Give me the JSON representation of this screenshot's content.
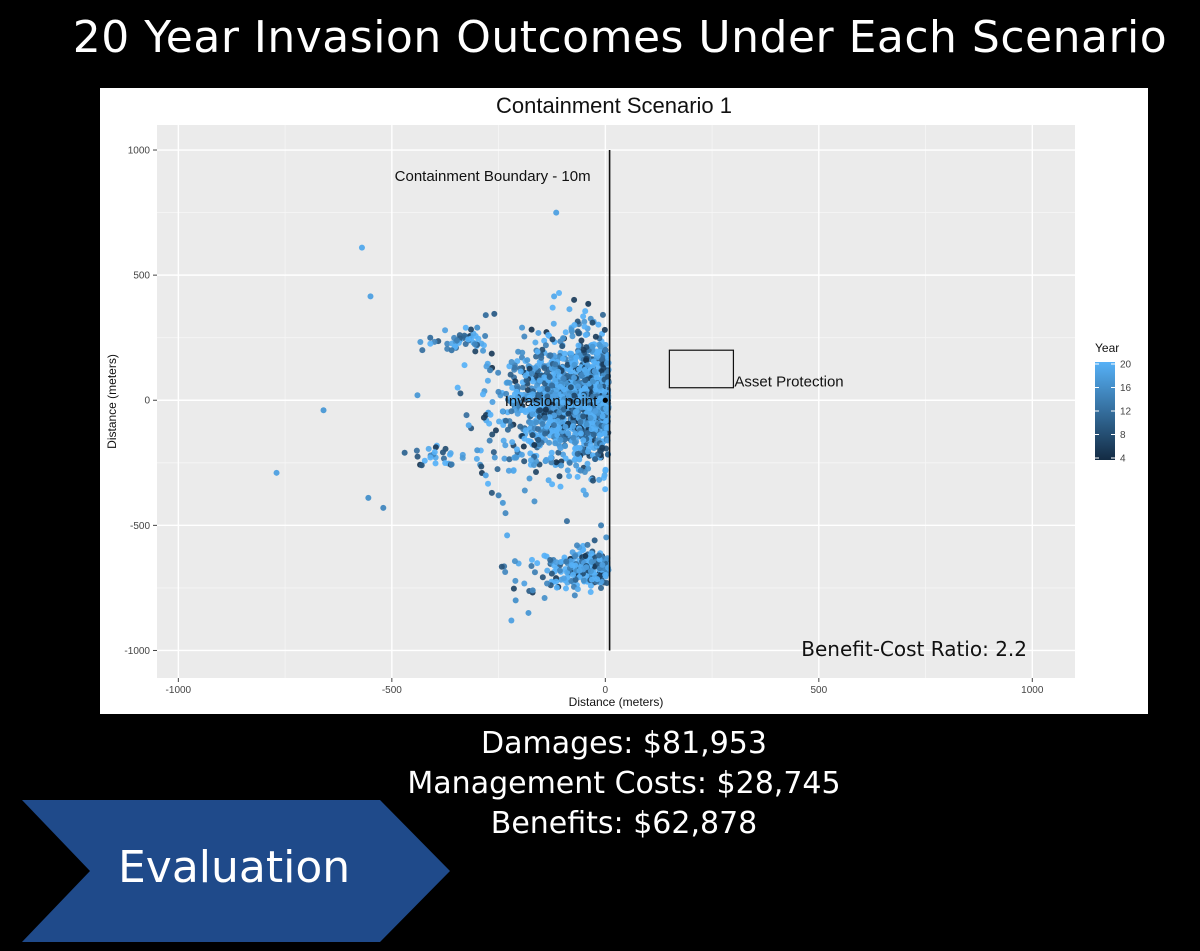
{
  "slide": {
    "title": "20 Year Invasion Outcomes Under Each Scenario",
    "stats": {
      "damages": "Damages: $81,953",
      "management_costs": "Management Costs: $28,745",
      "benefits": "Benefits: $62,878"
    },
    "banner": {
      "label": "Evaluation",
      "color": "#1f4a8a"
    }
  },
  "chart_data": {
    "type": "scatter",
    "title": "Containment Scenario 1",
    "xlabel": "Distance (meters)",
    "ylabel": "Distance (meters)",
    "xlim": [
      -1050,
      1100
    ],
    "ylim": [
      -1110,
      1100
    ],
    "x_ticks": [
      -1000,
      -500,
      0,
      500,
      1000
    ],
    "x_tick_labels": [
      "-1000",
      "-500",
      "0",
      "500",
      "1000"
    ],
    "y_ticks": [
      -1000,
      -500,
      0,
      500,
      1000
    ],
    "y_tick_labels": [
      "-1000",
      "-500",
      "0",
      "500",
      "1000"
    ],
    "grid": true,
    "panel_background": "#ebebeb",
    "legend": {
      "title": "Year",
      "position": "right",
      "ticks": [
        "20",
        "16",
        "12",
        "8",
        "4"
      ],
      "color_low": "#132b43",
      "color_high": "#56b1f7"
    },
    "containment_boundary": {
      "x": 10,
      "y_range": [
        -1000,
        1000
      ],
      "label": "Containment Boundary - 10m"
    },
    "asset_protection": {
      "x_range": [
        150,
        300
      ],
      "y_range": [
        50,
        200
      ],
      "label": "Asset Protection"
    },
    "invasion_point": {
      "x": 0,
      "y": 0,
      "label": "Invasion point"
    },
    "benefit_cost_ratio": "Benefit-Cost Ratio: 2.2",
    "series": [
      {
        "description_clusters": [
          {
            "cx": -95,
            "cy": 10,
            "sx": 65,
            "sy": 110,
            "n": 900
          },
          {
            "cx": -35,
            "cy": 0,
            "sx": 30,
            "sy": 120,
            "n": 500
          },
          {
            "cx": -160,
            "cy": -60,
            "sx": 70,
            "sy": 130,
            "n": 200
          },
          {
            "cx": -40,
            "cy": -680,
            "sx": 35,
            "sy": 40,
            "n": 160
          },
          {
            "cx": -110,
            "cy": -680,
            "sx": 55,
            "sy": 55,
            "n": 60
          },
          {
            "cx": -330,
            "cy": 230,
            "sx": 40,
            "sy": 25,
            "n": 45
          },
          {
            "cx": -400,
            "cy": -220,
            "sx": 30,
            "sy": 25,
            "n": 25
          }
        ],
        "points": [
          [
            -115,
            750,
            18
          ],
          [
            -570,
            610,
            19
          ],
          [
            -550,
            415,
            18
          ],
          [
            -120,
            415,
            19
          ],
          [
            -660,
            -40,
            17
          ],
          [
            -770,
            -290,
            18
          ],
          [
            -555,
            -390,
            16
          ],
          [
            -520,
            -430,
            15
          ],
          [
            -40,
            385,
            6
          ],
          [
            -30,
            310,
            8
          ],
          [
            -260,
            345,
            10
          ],
          [
            -280,
            340,
            12
          ],
          [
            -250,
            -380,
            14
          ],
          [
            -240,
            -410,
            17
          ],
          [
            -230,
            -540,
            19
          ],
          [
            -220,
            -880,
            18
          ],
          [
            -180,
            -850,
            17
          ],
          [
            -210,
            -800,
            16
          ],
          [
            -170,
            -760,
            15
          ],
          [
            -15,
            -620,
            12
          ],
          [
            -25,
            -560,
            10
          ],
          [
            -10,
            -500,
            14
          ],
          [
            -360,
            200,
            13
          ],
          [
            -440,
            20,
            17
          ],
          [
            -470,
            -210,
            11
          ],
          [
            -430,
            -260,
            9
          ],
          [
            -300,
            290,
            16
          ],
          [
            -410,
            250,
            12
          ],
          [
            -320,
            -100,
            19
          ],
          [
            -300,
            -200,
            17
          ],
          [
            -280,
            -300,
            18
          ],
          [
            -270,
            120,
            14
          ]
        ]
      }
    ]
  }
}
